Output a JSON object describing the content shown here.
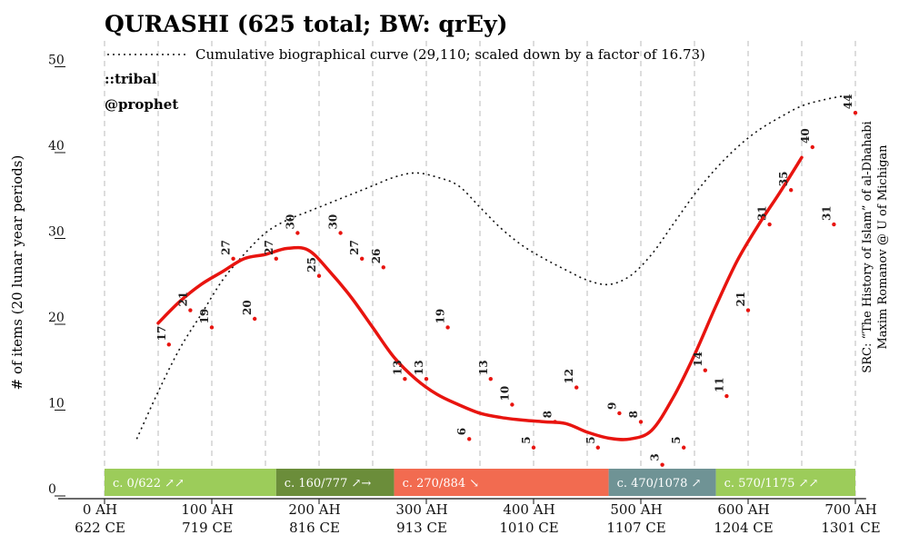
{
  "chart_data": {
    "type": "line",
    "title": "QURASHI (625 total; BW: qrEy)",
    "ylabel": "# of items (20 lunar year periods)",
    "legend": {
      "label": "Cumulative biographical curve (29,110; scaled down by a factor of 16.73)",
      "position": "top-left"
    },
    "tags": [
      "::tribal",
      "@prophet"
    ],
    "source_lines": [
      "SRC: “The History of Islam” of al-Dhahabi",
      "Maxim Romanov @ U of Michigan"
    ],
    "xlim": [
      0,
      710
    ],
    "ylim": [
      0,
      50
    ],
    "yticks": [
      {
        "value": 0,
        "label": "0"
      },
      {
        "value": 10,
        "label": "10"
      },
      {
        "value": 20,
        "label": "20"
      },
      {
        "value": 30,
        "label": "30"
      },
      {
        "value": 40,
        "label": "40"
      },
      {
        "value": 50,
        "label": "50"
      }
    ],
    "xticks": [
      {
        "value": 0,
        "ah": "0 AH",
        "ce": "622 CE"
      },
      {
        "value": 100,
        "ah": "100 AH",
        "ce": "719 CE"
      },
      {
        "value": 200,
        "ah": "200 AH",
        "ce": "816 CE"
      },
      {
        "value": 300,
        "ah": "300 AH",
        "ce": "913 CE"
      },
      {
        "value": 400,
        "ah": "400 AH",
        "ce": "1010 CE"
      },
      {
        "value": 500,
        "ah": "500 AH",
        "ce": "1107 CE"
      },
      {
        "value": 600,
        "ah": "600 AH",
        "ce": "1204 CE"
      },
      {
        "value": 700,
        "ah": "700 AH",
        "ce": "1301 CE"
      }
    ],
    "grid_lines_x": [
      0,
      50,
      100,
      150,
      200,
      250,
      300,
      350,
      400,
      450,
      500,
      550,
      600,
      650,
      700
    ],
    "colors": {
      "points": "#e8140f",
      "smooth_line": "#e8140f",
      "cumulative_curve": "#111111",
      "grid": "#bbbbbb"
    },
    "points": [
      {
        "x": 60,
        "y": 17,
        "label": "17"
      },
      {
        "x": 80,
        "y": 21,
        "label": "21"
      },
      {
        "x": 100,
        "y": 19,
        "label": "19"
      },
      {
        "x": 120,
        "y": 27,
        "label": "27"
      },
      {
        "x": 140,
        "y": 20,
        "label": "20"
      },
      {
        "x": 160,
        "y": 27,
        "label": "27"
      },
      {
        "x": 180,
        "y": 30,
        "label": "30"
      },
      {
        "x": 200,
        "y": 25,
        "label": "25"
      },
      {
        "x": 220,
        "y": 30,
        "label": "30"
      },
      {
        "x": 240,
        "y": 27,
        "label": "27"
      },
      {
        "x": 260,
        "y": 26,
        "label": "26"
      },
      {
        "x": 280,
        "y": 13,
        "label": "13"
      },
      {
        "x": 300,
        "y": 13,
        "label": "13"
      },
      {
        "x": 320,
        "y": 19,
        "label": "19"
      },
      {
        "x": 340,
        "y": 6,
        "label": "6"
      },
      {
        "x": 360,
        "y": 13,
        "label": "13"
      },
      {
        "x": 380,
        "y": 10,
        "label": "10"
      },
      {
        "x": 400,
        "y": 5,
        "label": "5"
      },
      {
        "x": 420,
        "y": 8,
        "label": "8"
      },
      {
        "x": 440,
        "y": 12,
        "label": "12"
      },
      {
        "x": 460,
        "y": 5,
        "label": "5"
      },
      {
        "x": 480,
        "y": 9,
        "label": "9"
      },
      {
        "x": 500,
        "y": 8,
        "label": "8"
      },
      {
        "x": 520,
        "y": 3,
        "label": "3"
      },
      {
        "x": 540,
        "y": 5,
        "label": "5"
      },
      {
        "x": 560,
        "y": 14,
        "label": "14"
      },
      {
        "x": 580,
        "y": 11,
        "label": "11"
      },
      {
        "x": 600,
        "y": 21,
        "label": "21"
      },
      {
        "x": 620,
        "y": 31,
        "label": "31"
      },
      {
        "x": 640,
        "y": 35,
        "label": "35"
      },
      {
        "x": 660,
        "y": 40,
        "label": "40"
      },
      {
        "x": 680,
        "y": 31,
        "label": "31"
      },
      {
        "x": 700,
        "y": 44,
        "label": "44"
      }
    ],
    "smooth_line": [
      [
        50,
        19.5
      ],
      [
        70,
        22
      ],
      [
        90,
        24
      ],
      [
        110,
        25.5
      ],
      [
        130,
        27
      ],
      [
        150,
        27.5
      ],
      [
        170,
        28.2
      ],
      [
        190,
        28
      ],
      [
        210,
        25.5
      ],
      [
        230,
        22.5
      ],
      [
        250,
        19
      ],
      [
        270,
        15.5
      ],
      [
        290,
        13
      ],
      [
        310,
        11.2
      ],
      [
        330,
        10
      ],
      [
        350,
        9
      ],
      [
        370,
        8.5
      ],
      [
        390,
        8.2
      ],
      [
        410,
        8
      ],
      [
        430,
        7.8
      ],
      [
        450,
        6.8
      ],
      [
        470,
        6.1
      ],
      [
        490,
        6
      ],
      [
        510,
        7
      ],
      [
        530,
        10.8
      ],
      [
        550,
        15.8
      ],
      [
        570,
        21.5
      ],
      [
        590,
        26.8
      ],
      [
        610,
        31
      ],
      [
        630,
        34.8
      ],
      [
        650,
        38.8
      ]
    ],
    "cumulative_curve": [
      [
        30,
        6
      ],
      [
        50,
        11.5
      ],
      [
        70,
        16.5
      ],
      [
        90,
        20.5
      ],
      [
        110,
        24.5
      ],
      [
        130,
        27.5
      ],
      [
        150,
        30
      ],
      [
        170,
        31.5
      ],
      [
        190,
        32.5
      ],
      [
        210,
        33.5
      ],
      [
        230,
        34.5
      ],
      [
        250,
        35.5
      ],
      [
        270,
        36.5
      ],
      [
        290,
        37
      ],
      [
        310,
        36.5
      ],
      [
        330,
        35.5
      ],
      [
        350,
        33
      ],
      [
        370,
        30.5
      ],
      [
        390,
        28.5
      ],
      [
        410,
        27
      ],
      [
        430,
        25.7
      ],
      [
        450,
        24.5
      ],
      [
        470,
        24
      ],
      [
        490,
        25
      ],
      [
        510,
        27.5
      ],
      [
        530,
        31
      ],
      [
        550,
        34.5
      ],
      [
        570,
        37.5
      ],
      [
        590,
        40
      ],
      [
        610,
        42
      ],
      [
        630,
        43.5
      ],
      [
        650,
        44.8
      ],
      [
        670,
        45.5
      ],
      [
        690,
        46
      ]
    ],
    "periods": [
      {
        "start": 0,
        "end": 160,
        "label": "c. 0/622 ↗↗",
        "color": "#9ccc5a"
      },
      {
        "start": 160,
        "end": 270,
        "label": "c. 160/777 ↗→",
        "color": "#6b8d3a"
      },
      {
        "start": 270,
        "end": 470,
        "label": "c. 270/884 ↘",
        "color": "#f26b50"
      },
      {
        "start": 470,
        "end": 570,
        "label": "c. 470/1078 ↗",
        "color": "#6f9395"
      },
      {
        "start": 570,
        "end": 700,
        "label": "c. 570/1175 ↗↗",
        "color": "#9ccc5a"
      }
    ]
  }
}
